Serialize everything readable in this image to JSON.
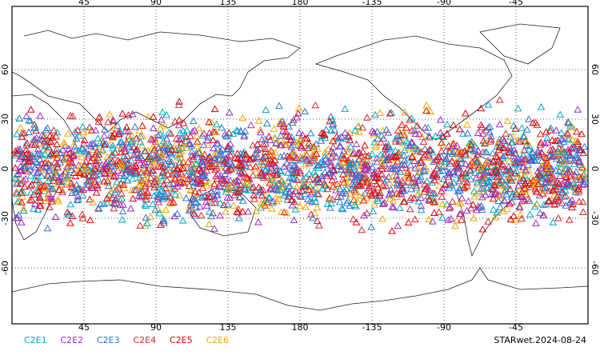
{
  "map": {
    "x_ticks": [
      45,
      90,
      135,
      180,
      -135,
      -90,
      -45
    ],
    "y_ticks": [
      60,
      30,
      0,
      -30,
      -60
    ],
    "legend": [
      {
        "name": "C2E1",
        "color": "#00a8c8"
      },
      {
        "name": "C2E2",
        "color": "#a028c8"
      },
      {
        "name": "C2E3",
        "color": "#2878d8"
      },
      {
        "name": "C2E4",
        "color": "#d82828"
      },
      {
        "name": "C2E5",
        "color": "#e80000"
      },
      {
        "name": "C2E6",
        "color": "#f0a800"
      }
    ],
    "footer": "STARwet.2024-08-24"
  }
}
